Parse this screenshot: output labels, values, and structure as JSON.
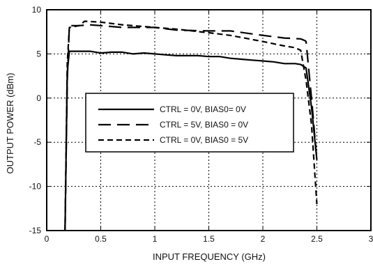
{
  "chart_data": {
    "type": "line",
    "xlabel": "INPUT FREQUENCY (GHz)",
    "ylabel": "OUTPUT POWER (dBm)",
    "xlim": [
      0,
      3
    ],
    "ylim": [
      -15,
      10
    ],
    "xticks": [
      0,
      0.5,
      1,
      1.5,
      2,
      2.5,
      3
    ],
    "xtick_labels": [
      "0",
      "0.5",
      "1",
      "1.5",
      "2",
      "2.5",
      "3"
    ],
    "yticks": [
      -15,
      -10,
      -5,
      0,
      5,
      10
    ],
    "ytick_labels": [
      "-15",
      "-10",
      "-5",
      "0",
      "5",
      "10"
    ],
    "grid": true,
    "legend_position": "center",
    "series": [
      {
        "name": "CTRL = 0V, BIAS0= 0V",
        "dash": "solid",
        "points": [
          [
            0.17,
            -15
          ],
          [
            0.19,
            3
          ],
          [
            0.21,
            5.3
          ],
          [
            0.3,
            5.3
          ],
          [
            0.4,
            5.3
          ],
          [
            0.5,
            5.1
          ],
          [
            0.6,
            5.2
          ],
          [
            0.7,
            5.2
          ],
          [
            0.8,
            5.0
          ],
          [
            0.9,
            5.1
          ],
          [
            1.0,
            5.0
          ],
          [
            1.1,
            4.9
          ],
          [
            1.2,
            4.8
          ],
          [
            1.3,
            4.8
          ],
          [
            1.4,
            4.8
          ],
          [
            1.5,
            4.7
          ],
          [
            1.6,
            4.7
          ],
          [
            1.7,
            4.5
          ],
          [
            1.8,
            4.4
          ],
          [
            1.9,
            4.3
          ],
          [
            2.0,
            4.2
          ],
          [
            2.1,
            4.1
          ],
          [
            2.2,
            3.9
          ],
          [
            2.3,
            3.9
          ],
          [
            2.35,
            3.8
          ],
          [
            2.4,
            3.4
          ],
          [
            2.45,
            -1
          ],
          [
            2.5,
            -7
          ]
        ]
      },
      {
        "name": "CTRL = 5V, BIAS0 = 0V",
        "dash": "long-dash",
        "points": [
          [
            0.17,
            -15
          ],
          [
            0.19,
            2
          ],
          [
            0.21,
            8.2
          ],
          [
            0.3,
            8.2
          ],
          [
            0.4,
            8.3
          ],
          [
            0.5,
            8.2
          ],
          [
            0.7,
            8.0
          ],
          [
            0.9,
            8.0
          ],
          [
            1.0,
            8.0
          ],
          [
            1.2,
            7.7
          ],
          [
            1.5,
            7.6
          ],
          [
            1.7,
            7.6
          ],
          [
            2.0,
            7.1
          ],
          [
            2.2,
            6.8
          ],
          [
            2.35,
            6.7
          ],
          [
            2.39,
            6.5
          ],
          [
            2.4,
            6.4
          ],
          [
            2.45,
            0
          ],
          [
            2.5,
            -7
          ]
        ]
      },
      {
        "name": "CTRL = 0V, BIAS0 = 5V",
        "dash": "short-dash",
        "points": [
          [
            0.17,
            -15
          ],
          [
            0.19,
            4
          ],
          [
            0.21,
            8.0
          ],
          [
            0.3,
            8.2
          ],
          [
            0.35,
            8.7
          ],
          [
            0.5,
            8.6
          ],
          [
            0.7,
            8.3
          ],
          [
            0.9,
            8.1
          ],
          [
            1.0,
            8.0
          ],
          [
            1.2,
            7.8
          ],
          [
            1.5,
            7.4
          ],
          [
            1.7,
            7.1
          ],
          [
            2.0,
            6.4
          ],
          [
            2.2,
            5.9
          ],
          [
            2.3,
            5.7
          ],
          [
            2.35,
            5.4
          ],
          [
            2.4,
            2
          ],
          [
            2.45,
            -3
          ],
          [
            2.5,
            -12
          ]
        ]
      }
    ]
  }
}
